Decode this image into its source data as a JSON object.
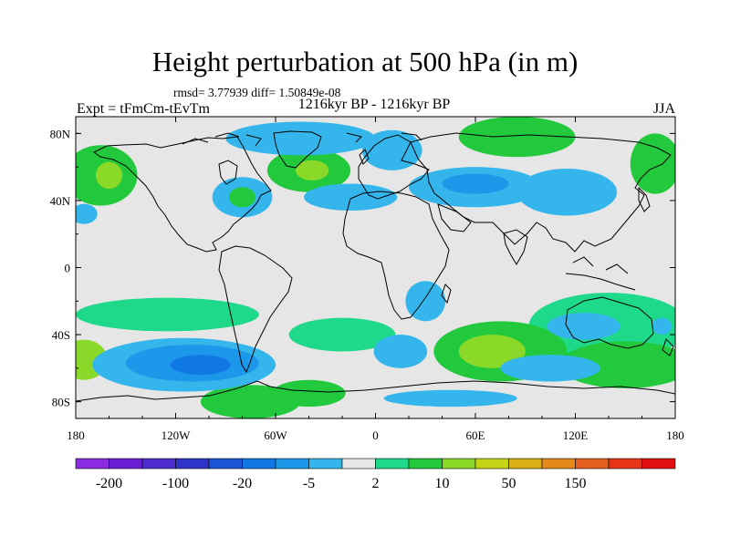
{
  "title": "Height perturbation at 500 hPa (in m)",
  "stats": "rmsd= 3.77939 diff= 1.50849e-08",
  "left_string": "Expt = tFmCm-tEvTm",
  "center_string": "1216kyr BP - 1216kyr BP",
  "right_string": "JJA",
  "axes": {
    "lat_ticks": [
      {
        "value": 80,
        "label": "80N"
      },
      {
        "value": 40,
        "label": "40N"
      },
      {
        "value": 0,
        "label": "0"
      },
      {
        "value": -40,
        "label": "40S"
      },
      {
        "value": -80,
        "label": "80S"
      }
    ],
    "lon_ticks": [
      {
        "value": -180,
        "label": "180"
      },
      {
        "value": -120,
        "label": "120W"
      },
      {
        "value": -60,
        "label": "60W"
      },
      {
        "value": 0,
        "label": "0"
      },
      {
        "value": 60,
        "label": "60E"
      },
      {
        "value": 120,
        "label": "120E"
      },
      {
        "value": 180,
        "label": "180"
      }
    ],
    "lon_range": [
      -180,
      180
    ],
    "lat_range": [
      -90,
      90
    ]
  },
  "colorbar": {
    "colors": [
      "#8a2be2",
      "#6a1fd6",
      "#4f2ccd",
      "#2f35c8",
      "#1c56d6",
      "#0f78e3",
      "#1c98eb",
      "#34b6ec",
      "#e6e6e6",
      "#1ed98a",
      "#22c93c",
      "#8ad828",
      "#c6d418",
      "#d8b014",
      "#e4881a",
      "#e4601e",
      "#e63418",
      "#e21010"
    ],
    "labels": [
      {
        "after_box": 1,
        "text": "-200"
      },
      {
        "after_box": 3,
        "text": "-100"
      },
      {
        "after_box": 5,
        "text": "-20"
      },
      {
        "after_box": 7,
        "text": "-5"
      },
      {
        "after_box": 9,
        "text": "2"
      },
      {
        "after_box": 11,
        "text": "10"
      },
      {
        "after_box": 13,
        "text": "50"
      },
      {
        "after_box": 15,
        "text": "150"
      }
    ]
  },
  "map_data": {
    "background_color": "#e6e6e6",
    "positive_regions": [
      {
        "name": "n-pacific-east",
        "lon": -165,
        "lat": 55,
        "rlon": 22,
        "rlat": 18,
        "color": "#22c93c"
      },
      {
        "name": "n-pacific-east-core",
        "lon": -160,
        "lat": 55,
        "rlon": 8,
        "rlat": 8,
        "color": "#8ad828"
      },
      {
        "name": "n-atlantic-west",
        "lon": -40,
        "lat": 58,
        "rlon": 25,
        "rlat": 13,
        "color": "#22c93c"
      },
      {
        "name": "n-atlantic-west-core",
        "lon": -38,
        "lat": 58,
        "rlon": 10,
        "rlat": 6,
        "color": "#8ad828"
      },
      {
        "name": "eurasia",
        "lon": 85,
        "lat": 78,
        "rlon": 35,
        "rlat": 12,
        "color": "#22c93c"
      },
      {
        "name": "pacific-ne",
        "lon": 168,
        "lat": 62,
        "rlon": 15,
        "rlat": 18,
        "color": "#22c93c"
      },
      {
        "name": "australia-ring",
        "lon": 140,
        "lat": -35,
        "rlon": 48,
        "rlat": 20,
        "color": "#1ed98a"
      },
      {
        "name": "s-pacific-band",
        "lon": -125,
        "lat": -28,
        "rlon": 55,
        "rlat": 10,
        "color": "#1ed98a"
      },
      {
        "name": "s-atlantic-band",
        "lon": -20,
        "lat": -40,
        "rlon": 32,
        "rlat": 10,
        "color": "#1ed98a"
      },
      {
        "name": "s-africa",
        "lon": 75,
        "lat": -50,
        "rlon": 40,
        "rlat": 18,
        "color": "#22c93c"
      },
      {
        "name": "s-africa-core",
        "lon": 70,
        "lat": -50,
        "rlon": 20,
        "rlat": 10,
        "color": "#8ad828"
      },
      {
        "name": "south-pacific-w",
        "lon": -175,
        "lat": -55,
        "rlon": 14,
        "rlat": 12,
        "color": "#8ad828"
      },
      {
        "name": "s-indian-ocean",
        "lon": 150,
        "lat": -58,
        "rlon": 40,
        "rlat": 14,
        "color": "#22c93c"
      },
      {
        "name": "antarctic-atlantic",
        "lon": -40,
        "lat": -75,
        "rlon": 22,
        "rlat": 8,
        "color": "#22c93c"
      },
      {
        "name": "drake-passage",
        "lon": -75,
        "lat": -80,
        "rlon": 30,
        "rlat": 10,
        "color": "#22c93c"
      }
    ],
    "negative_regions": [
      {
        "name": "arctic-canada",
        "lon": -45,
        "lat": 77,
        "rlon": 45,
        "rlat": 10,
        "color": "#34b6ec"
      },
      {
        "name": "arctic-scandinavia",
        "lon": 10,
        "lat": 70,
        "rlon": 18,
        "rlat": 12,
        "color": "#34b6ec"
      },
      {
        "name": "n-america-east",
        "lon": -80,
        "lat": 42,
        "rlon": 18,
        "rlat": 12,
        "color": "#34b6ec"
      },
      {
        "name": "n-america-east-core",
        "lon": -80,
        "lat": 42,
        "rlon": 8,
        "rlat": 6,
        "color": "#22c93c"
      },
      {
        "name": "n-atlantic",
        "lon": -15,
        "lat": 42,
        "rlon": 28,
        "rlat": 8,
        "color": "#34b6ec"
      },
      {
        "name": "asia-central",
        "lon": 60,
        "lat": 48,
        "rlon": 40,
        "rlat": 12,
        "color": "#34b6ec"
      },
      {
        "name": "asia-central-core",
        "lon": 60,
        "lat": 50,
        "rlon": 20,
        "rlat": 6,
        "color": "#1c98eb"
      },
      {
        "name": "asia-central-east",
        "lon": 115,
        "lat": 45,
        "rlon": 30,
        "rlat": 14,
        "color": "#34b6ec"
      },
      {
        "name": "west-pacific",
        "lon": -175,
        "lat": 32,
        "rlon": 8,
        "rlat": 6,
        "color": "#34b6ec"
      },
      {
        "name": "s-pacific-low",
        "lon": -115,
        "lat": -58,
        "rlon": 55,
        "rlat": 16,
        "color": "#34b6ec"
      },
      {
        "name": "s-pacific-low-mid",
        "lon": -110,
        "lat": -57,
        "rlon": 40,
        "rlat": 11,
        "color": "#1c98eb"
      },
      {
        "name": "s-pacific-low-core",
        "lon": -105,
        "lat": -58,
        "rlon": 18,
        "rlat": 6,
        "color": "#0f78e3"
      },
      {
        "name": "s-atlantic-low",
        "lon": 15,
        "lat": -50,
        "rlon": 16,
        "rlat": 10,
        "color": "#34b6ec"
      },
      {
        "name": "s-indian-low",
        "lon": 125,
        "lat": -35,
        "rlon": 22,
        "rlat": 8,
        "color": "#34b6ec"
      },
      {
        "name": "s-indian-low-2",
        "lon": 105,
        "lat": -60,
        "rlon": 30,
        "rlat": 8,
        "color": "#34b6ec"
      },
      {
        "name": "s-ocean-west",
        "lon": 45,
        "lat": -78,
        "rlon": 40,
        "rlat": 5,
        "color": "#34b6ec"
      },
      {
        "name": "nz-east",
        "lon": 172,
        "lat": -35,
        "rlon": 6,
        "rlat": 5,
        "color": "#34b6ec"
      },
      {
        "name": "african-south",
        "lon": 30,
        "lat": -20,
        "rlon": 12,
        "rlat": 12,
        "color": "#34b6ec"
      }
    ]
  }
}
